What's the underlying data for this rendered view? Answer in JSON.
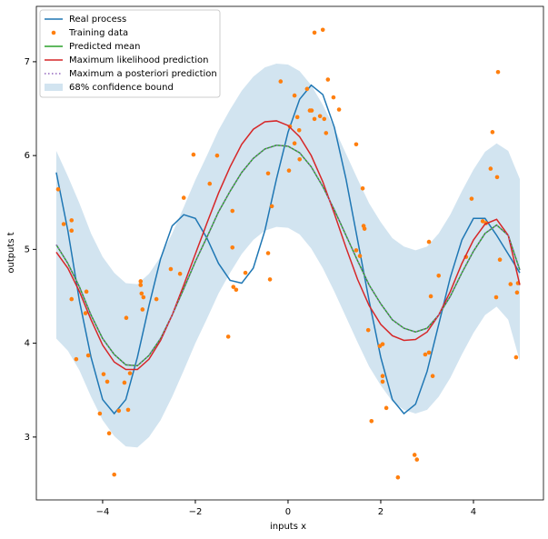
{
  "chart_data": {
    "type": "line",
    "xlabel": "inputs x",
    "ylabel": "outputs t",
    "xlim": [
      -5.43,
      5.51
    ],
    "ylim": [
      2.33,
      7.59
    ],
    "xticks": [
      {
        "value": -4,
        "label": "−4"
      },
      {
        "value": -2,
        "label": "−2"
      },
      0,
      2,
      4
    ],
    "yticks": [
      3,
      4,
      5,
      6,
      7
    ],
    "legend": "upper left",
    "x": [
      -5,
      -4.75,
      -4.5,
      -4.25,
      -4,
      -3.75,
      -3.5,
      -3.25,
      -3,
      -2.75,
      -2.5,
      -2.25,
      -2,
      -1.75,
      -1.5,
      -1.25,
      -1,
      -0.75,
      -0.5,
      -0.25,
      0,
      0.25,
      0.5,
      0.75,
      1,
      1.25,
      1.5,
      1.75,
      2,
      2.25,
      2.5,
      2.75,
      3,
      3.25,
      3.5,
      3.75,
      4,
      4.25,
      4.5,
      4.75,
      5
    ],
    "series": [
      {
        "name": "Real process",
        "type": "line",
        "color": "#1f77b4",
        "values": [
          5.82,
          5.2,
          4.45,
          3.85,
          3.4,
          3.25,
          3.4,
          3.85,
          4.4,
          4.9,
          5.25,
          5.37,
          5.33,
          5.12,
          4.85,
          4.67,
          4.64,
          4.8,
          5.2,
          5.75,
          6.25,
          6.6,
          6.75,
          6.65,
          6.3,
          5.75,
          5.1,
          4.45,
          3.85,
          3.4,
          3.25,
          3.35,
          3.7,
          4.2,
          4.7,
          5.1,
          5.33,
          5.33,
          5.15,
          4.95,
          4.75
        ]
      },
      {
        "name": "Training data",
        "type": "scatter",
        "color": "#ff7f0e",
        "x": [
          -4.96,
          -4.84,
          -4.67,
          -4.67,
          -4.67,
          -4.35,
          -4.37,
          -4.57,
          -4.31,
          -4.06,
          -3.98,
          -3.9,
          -3.86,
          -3.75,
          -3.65,
          -3.53,
          -3.49,
          -3.45,
          -3.41,
          -3.18,
          -3.18,
          -3.16,
          -3.12,
          -3.14,
          -2.84,
          -2.53,
          -2.33,
          -2.25,
          -2.04,
          -1.69,
          -1.53,
          -1.29,
          -1.2,
          -1.2,
          -1.18,
          -1.12,
          -0.92,
          -0.43,
          -0.43,
          -0.39,
          -0.35,
          -0.16,
          0.02,
          0.04,
          0.14,
          0.14,
          0.2,
          0.24,
          0.25,
          0.41,
          0.47,
          0.51,
          0.57,
          0.57,
          0.69,
          0.75,
          0.78,
          0.82,
          0.86,
          0.98,
          1.1,
          1.47,
          1.47,
          1.55,
          1.61,
          1.65,
          1.63,
          1.73,
          1.8,
          1.98,
          2.04,
          2.04,
          2.04,
          2.12,
          2.37,
          2.73,
          2.78,
          2.96,
          3.04,
          3.04,
          3.08,
          3.12,
          3.25,
          3.84,
          3.96,
          4.2,
          4.27,
          4.37,
          4.41,
          4.49,
          4.51,
          4.53,
          4.57,
          4.8,
          4.92,
          4.94,
          4.96
        ],
        "values": [
          5.64,
          5.27,
          5.31,
          5.2,
          4.47,
          4.55,
          4.32,
          3.83,
          3.87,
          3.25,
          3.67,
          3.59,
          3.04,
          2.6,
          3.28,
          3.58,
          4.27,
          3.29,
          3.68,
          4.66,
          4.62,
          4.53,
          4.49,
          4.36,
          4.47,
          4.79,
          4.74,
          5.55,
          6.01,
          5.7,
          6.0,
          4.07,
          5.41,
          5.02,
          4.6,
          4.57,
          4.75,
          5.81,
          4.96,
          4.68,
          5.46,
          6.79,
          5.84,
          6.31,
          6.64,
          6.13,
          6.41,
          6.27,
          5.96,
          6.71,
          6.48,
          6.48,
          6.39,
          7.31,
          6.42,
          7.34,
          6.39,
          6.24,
          6.81,
          6.62,
          6.49,
          6.12,
          4.99,
          4.93,
          5.65,
          5.22,
          5.25,
          4.14,
          3.17,
          3.97,
          3.99,
          3.65,
          3.59,
          3.31,
          2.57,
          2.81,
          2.76,
          3.88,
          3.9,
          5.08,
          4.5,
          3.65,
          4.72,
          4.92,
          5.54,
          5.3,
          5.28,
          5.86,
          6.25,
          4.49,
          5.77,
          6.89,
          4.89,
          4.63,
          3.85,
          4.54,
          4.64
        ]
      },
      {
        "name": "Predicted mean",
        "type": "line",
        "color": "#2ca02c",
        "values": [
          5.05,
          4.85,
          4.6,
          4.3,
          4.05,
          3.88,
          3.77,
          3.76,
          3.87,
          4.05,
          4.3,
          4.58,
          4.87,
          5.13,
          5.4,
          5.62,
          5.82,
          5.97,
          6.07,
          6.11,
          6.1,
          6.03,
          5.88,
          5.67,
          5.42,
          5.15,
          4.88,
          4.62,
          4.42,
          4.25,
          4.16,
          4.12,
          4.16,
          4.3,
          4.5,
          4.75,
          4.98,
          5.17,
          5.26,
          5.15,
          4.78
        ]
      },
      {
        "name": "Maximum likelihood prediction",
        "type": "line",
        "color": "#d62728",
        "values": [
          4.97,
          4.8,
          4.55,
          4.25,
          3.98,
          3.8,
          3.72,
          3.72,
          3.83,
          4.03,
          4.3,
          4.62,
          4.95,
          5.28,
          5.6,
          5.88,
          6.12,
          6.28,
          6.36,
          6.37,
          6.32,
          6.2,
          6.0,
          5.72,
          5.38,
          5.02,
          4.68,
          4.4,
          4.2,
          4.08,
          4.03,
          4.04,
          4.12,
          4.3,
          4.55,
          4.85,
          5.1,
          5.27,
          5.32,
          5.15,
          4.62
        ]
      },
      {
        "name": "Maximum a posteriori prediction",
        "type": "line",
        "color": "#9467bd",
        "dotted": true,
        "values": [
          5.05,
          4.85,
          4.6,
          4.3,
          4.05,
          3.88,
          3.77,
          3.76,
          3.87,
          4.05,
          4.3,
          4.58,
          4.87,
          5.13,
          5.4,
          5.62,
          5.82,
          5.97,
          6.07,
          6.11,
          6.1,
          6.03,
          5.88,
          5.67,
          5.42,
          5.15,
          4.88,
          4.62,
          4.42,
          4.25,
          4.16,
          4.12,
          4.16,
          4.3,
          4.5,
          4.75,
          4.98,
          5.17,
          5.26,
          5.15,
          4.78
        ]
      },
      {
        "name": "68% confidence bound",
        "type": "band",
        "color": "#1f77b4",
        "lower": [
          4.05,
          3.92,
          3.71,
          3.43,
          3.18,
          3.01,
          2.9,
          2.89,
          3.0,
          3.18,
          3.43,
          3.71,
          4.0,
          4.26,
          4.53,
          4.75,
          4.95,
          5.1,
          5.2,
          5.24,
          5.23,
          5.16,
          5.01,
          4.8,
          4.55,
          4.28,
          4.01,
          3.75,
          3.55,
          3.38,
          3.29,
          3.25,
          3.29,
          3.43,
          3.63,
          3.88,
          4.11,
          4.3,
          4.39,
          4.25,
          3.81
        ],
        "upper": [
          6.05,
          5.78,
          5.49,
          5.17,
          4.92,
          4.75,
          4.64,
          4.63,
          4.74,
          4.92,
          5.17,
          5.45,
          5.74,
          6.0,
          6.27,
          6.49,
          6.69,
          6.84,
          6.94,
          6.98,
          6.97,
          6.9,
          6.75,
          6.54,
          6.29,
          6.02,
          5.75,
          5.49,
          5.29,
          5.12,
          5.03,
          4.99,
          5.03,
          5.17,
          5.37,
          5.62,
          5.85,
          6.04,
          6.13,
          6.05,
          5.75
        ]
      }
    ]
  }
}
